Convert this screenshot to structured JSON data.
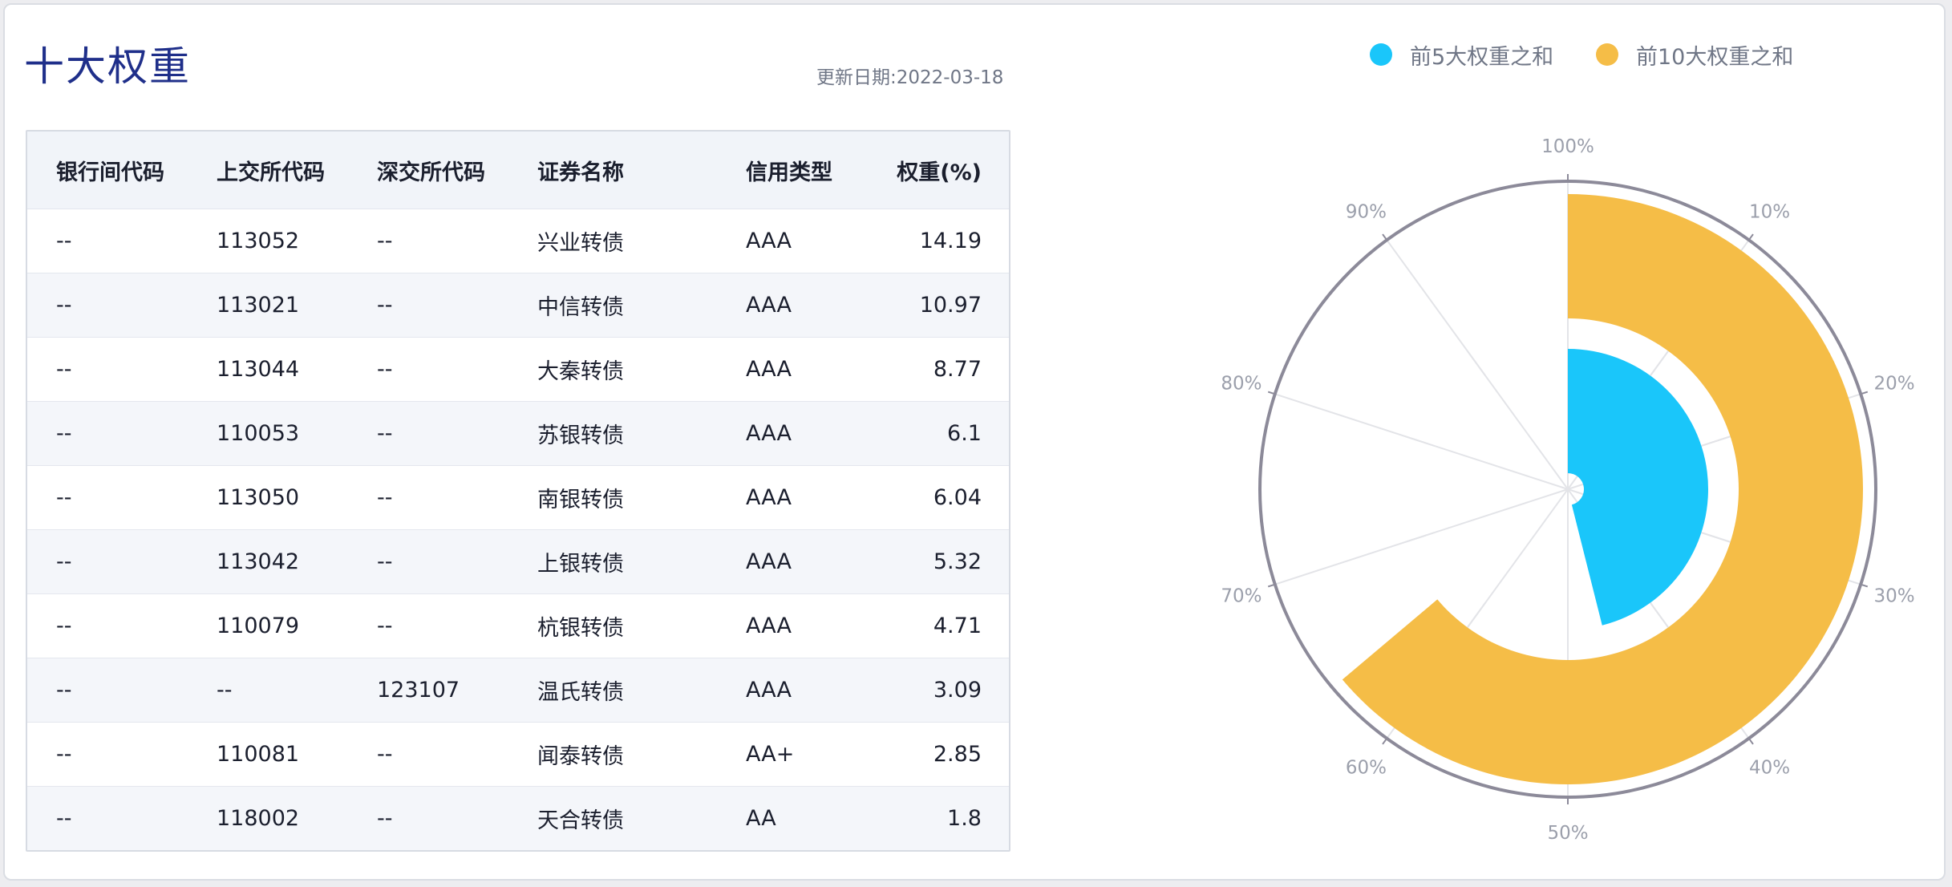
{
  "header": {
    "title": "十大权重",
    "update_label": "更新日期:",
    "update_date": "2022-03-18"
  },
  "table": {
    "columns": [
      "银行间代码",
      "上交所代码",
      "深交所代码",
      "证券名称",
      "信用类型",
      "权重(%)"
    ],
    "rows": [
      [
        "--",
        "113052",
        "--",
        "兴业转债",
        "AAA",
        "14.19"
      ],
      [
        "--",
        "113021",
        "--",
        "中信转债",
        "AAA",
        "10.97"
      ],
      [
        "--",
        "113044",
        "--",
        "大秦转债",
        "AAA",
        "8.77"
      ],
      [
        "--",
        "110053",
        "--",
        "苏银转债",
        "AAA",
        "6.1"
      ],
      [
        "--",
        "113050",
        "--",
        "南银转债",
        "AAA",
        "6.04"
      ],
      [
        "--",
        "113042",
        "--",
        "上银转债",
        "AAA",
        "5.32"
      ],
      [
        "--",
        "110079",
        "--",
        "杭银转债",
        "AAA",
        "4.71"
      ],
      [
        "--",
        "--",
        "123107",
        "温氏转债",
        "AAA",
        "3.09"
      ],
      [
        "--",
        "110081",
        "--",
        "闻泰转债",
        "AA+",
        "2.85"
      ],
      [
        "--",
        "118002",
        "--",
        "天合转债",
        "AA",
        "1.8"
      ]
    ]
  },
  "chart_data": {
    "type": "polar-bar",
    "angle_ticks": [
      "10%",
      "20%",
      "30%",
      "40%",
      "50%",
      "60%",
      "70%",
      "80%",
      "90%",
      "100%"
    ],
    "axis_max": 100,
    "series": [
      {
        "name": "前5大权重之和",
        "value": 46.07,
        "color": "#1ac6fa"
      },
      {
        "name": "前10大权重之和",
        "value": 63.84,
        "color": "#f5bd47"
      }
    ],
    "legend_position": "top-right"
  }
}
